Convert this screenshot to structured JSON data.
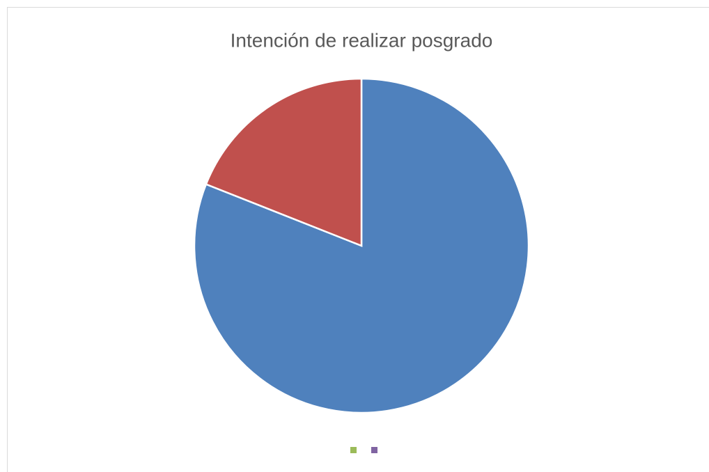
{
  "chart_data": {
    "type": "pie",
    "title": "Intención de realizar posgrado",
    "values": [
      81,
      19
    ],
    "colors": [
      "#4f81bd",
      "#c0504d"
    ],
    "legend": [
      {
        "color": "#9bbb59"
      },
      {
        "color": "#8064a2"
      }
    ]
  }
}
